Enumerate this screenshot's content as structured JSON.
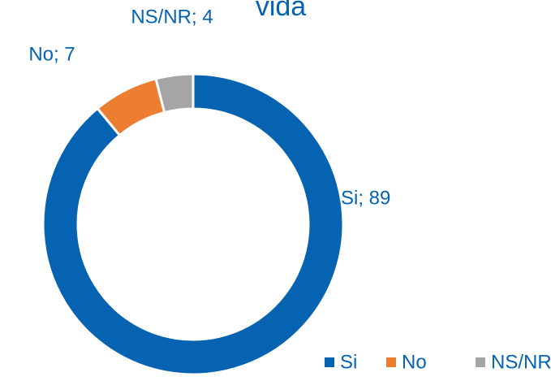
{
  "chart_data": {
    "type": "pie",
    "title": "vida",
    "categories": [
      "Si",
      "No",
      "NS/NR"
    ],
    "values": [
      89,
      7,
      4
    ],
    "value_labels": [
      "Si; 89",
      "No; 7",
      "NS/NR; 4"
    ],
    "colors": [
      "#0563b1",
      "#ed7d31",
      "#a5a5a5"
    ],
    "legend": "bottom-right"
  }
}
